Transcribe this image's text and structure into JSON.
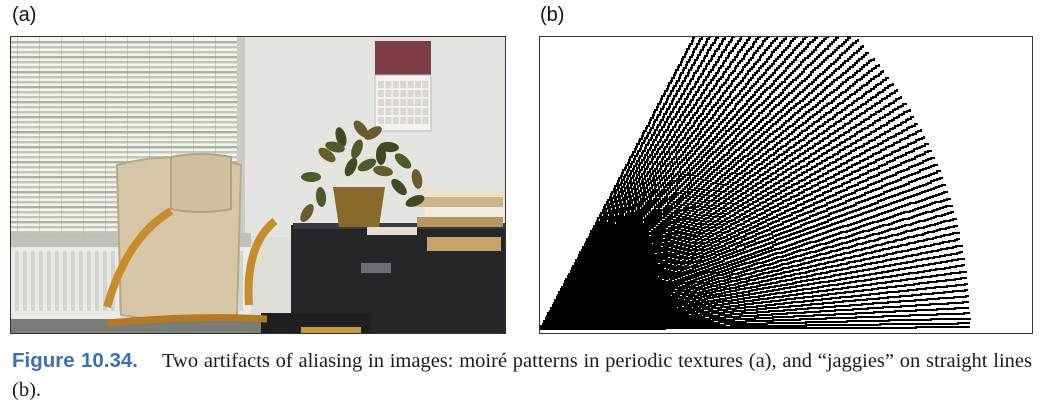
{
  "panels": {
    "a": {
      "label": "(a)"
    },
    "b": {
      "label": "(b)"
    }
  },
  "caption": {
    "figure_number": "Figure 10.34.",
    "text": "Two artifacts of aliasing in images: moiré patterns in periodic textures (a), and “jaggies” on straight lines (b)."
  },
  "colors": {
    "figure_number": "#3c6fb0",
    "line_art": "#000000"
  }
}
